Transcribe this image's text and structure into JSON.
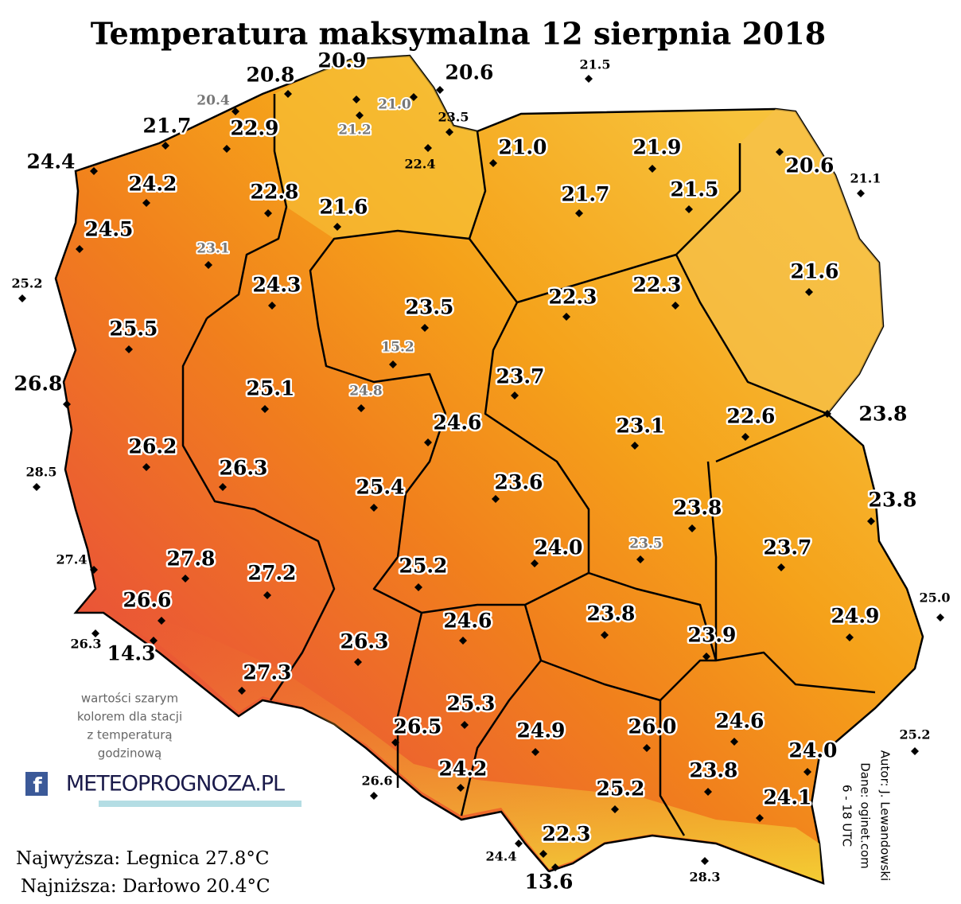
{
  "title": "Temperatura maksymalna 12 sierpnia 2018",
  "stations": [
    {
      "label": "20.9",
      "style": "large"
    },
    {
      "label": "20.8",
      "style": "large"
    },
    {
      "label": "20.6",
      "style": "large"
    },
    {
      "label": "21.5",
      "style": "small"
    },
    {
      "label": "20.4",
      "style": "gray"
    },
    {
      "label": "21.0",
      "style": "gray"
    },
    {
      "label": "23.5",
      "style": "small"
    },
    {
      "label": "21.2",
      "style": "gray"
    },
    {
      "label": "22.9",
      "style": "large"
    },
    {
      "label": "21.7",
      "style": "large"
    },
    {
      "label": "22.4",
      "style": "small"
    },
    {
      "label": "21.0",
      "style": "large"
    },
    {
      "label": "21.9",
      "style": "large"
    },
    {
      "label": "20.6",
      "style": "large"
    },
    {
      "label": "21.1",
      "style": "small"
    },
    {
      "label": "24.4",
      "style": "large"
    },
    {
      "label": "24.2",
      "style": "large"
    },
    {
      "label": "22.8",
      "style": "large"
    },
    {
      "label": "21.6",
      "style": "large"
    },
    {
      "label": "21.7",
      "style": "large"
    },
    {
      "label": "21.5",
      "style": "large"
    },
    {
      "label": "24.5",
      "style": "large"
    },
    {
      "label": "23.1",
      "style": "gray"
    },
    {
      "label": "21.6",
      "style": "large"
    },
    {
      "label": "25.2",
      "style": "small"
    },
    {
      "label": "24.3",
      "style": "large"
    },
    {
      "label": "22.3",
      "style": "large"
    },
    {
      "label": "22.3",
      "style": "large"
    },
    {
      "label": "23.5",
      "style": "large"
    },
    {
      "label": "25.5",
      "style": "large"
    },
    {
      "label": "15.2",
      "style": "gray"
    },
    {
      "label": "26.8",
      "style": "large"
    },
    {
      "label": "23.7",
      "style": "large"
    },
    {
      "label": "25.1",
      "style": "large"
    },
    {
      "label": "24.8",
      "style": "gray"
    },
    {
      "label": "23.8",
      "style": "large"
    },
    {
      "label": "24.6",
      "style": "large"
    },
    {
      "label": "23.1",
      "style": "large"
    },
    {
      "label": "22.6",
      "style": "large"
    },
    {
      "label": "26.2",
      "style": "large"
    },
    {
      "label": "26.3",
      "style": "large"
    },
    {
      "label": "28.5",
      "style": "small"
    },
    {
      "label": "25.4",
      "style": "large"
    },
    {
      "label": "23.6",
      "style": "large"
    },
    {
      "label": "23.8",
      "style": "large"
    },
    {
      "label": "23.8",
      "style": "large"
    },
    {
      "label": "23.5",
      "style": "gray"
    },
    {
      "label": "23.7",
      "style": "large"
    },
    {
      "label": "24.0",
      "style": "large"
    },
    {
      "label": "27.4",
      "style": "small"
    },
    {
      "label": "27.8",
      "style": "large"
    },
    {
      "label": "27.2",
      "style": "large"
    },
    {
      "label": "25.2",
      "style": "large"
    },
    {
      "label": "25.0",
      "style": "small"
    },
    {
      "label": "26.6",
      "style": "large"
    },
    {
      "label": "24.6",
      "style": "large"
    },
    {
      "label": "23.8",
      "style": "large"
    },
    {
      "label": "23.9",
      "style": "large"
    },
    {
      "label": "24.9",
      "style": "large"
    },
    {
      "label": "26.3",
      "style": "small"
    },
    {
      "label": "14.3",
      "style": "large"
    },
    {
      "label": "26.3",
      "style": "large"
    },
    {
      "label": "27.3",
      "style": "large"
    },
    {
      "label": "25.3",
      "style": "large"
    },
    {
      "label": "26.5",
      "style": "large"
    },
    {
      "label": "24.9",
      "style": "large"
    },
    {
      "label": "26.0",
      "style": "large"
    },
    {
      "label": "24.6",
      "style": "large"
    },
    {
      "label": "25.2",
      "style": "small"
    },
    {
      "label": "24.0",
      "style": "large"
    },
    {
      "label": "26.6",
      "style": "small"
    },
    {
      "label": "24.2",
      "style": "large"
    },
    {
      "label": "23.8",
      "style": "large"
    },
    {
      "label": "25.2",
      "style": "large"
    },
    {
      "label": "24.1",
      "style": "large"
    },
    {
      "label": "22.3",
      "style": "large"
    },
    {
      "label": "24.4",
      "style": "small"
    },
    {
      "label": "28.3",
      "style": "small"
    },
    {
      "label": "13.6",
      "style": "large"
    }
  ],
  "note": [
    "wartości szarym",
    "kolorem dla stacji",
    "z temperaturą",
    "godzinową"
  ],
  "logo": {
    "icon": "f",
    "text": "METEOPROGNOZA.PL"
  },
  "records": [
    "Najwyższa: Legnica 27.8°C",
    "Najniższa: Darłowo 20.4°C"
  ],
  "credits": [
    "Autor: J. Lewandowski",
    "Dane: oginet.com",
    "6 - 18 UTC"
  ]
}
